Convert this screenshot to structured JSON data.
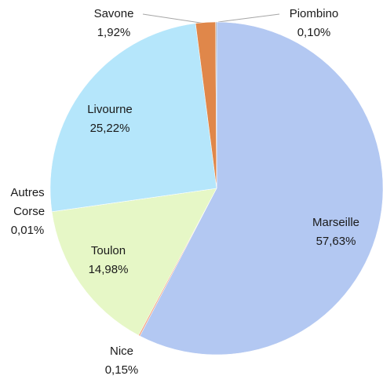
{
  "chart_data": {
    "type": "pie",
    "categories": [
      "Marseille",
      "Nice",
      "Toulon",
      "Autres Corse",
      "Livourne",
      "Savone",
      "Piombino"
    ],
    "values": [
      57.63,
      0.15,
      14.98,
      0.01,
      25.22,
      1.92,
      0.1
    ],
    "value_labels": [
      "57,63%",
      "0,15%",
      "14,98%",
      "0,01%",
      "25,22%",
      "1,92%",
      "0,10%"
    ],
    "colors": [
      "#b3c8f2",
      "#f2a98a",
      "#e6f7c6",
      "#d9d9d9",
      "#b5e6fb",
      "#e0874a",
      "#a6a6a6"
    ]
  }
}
